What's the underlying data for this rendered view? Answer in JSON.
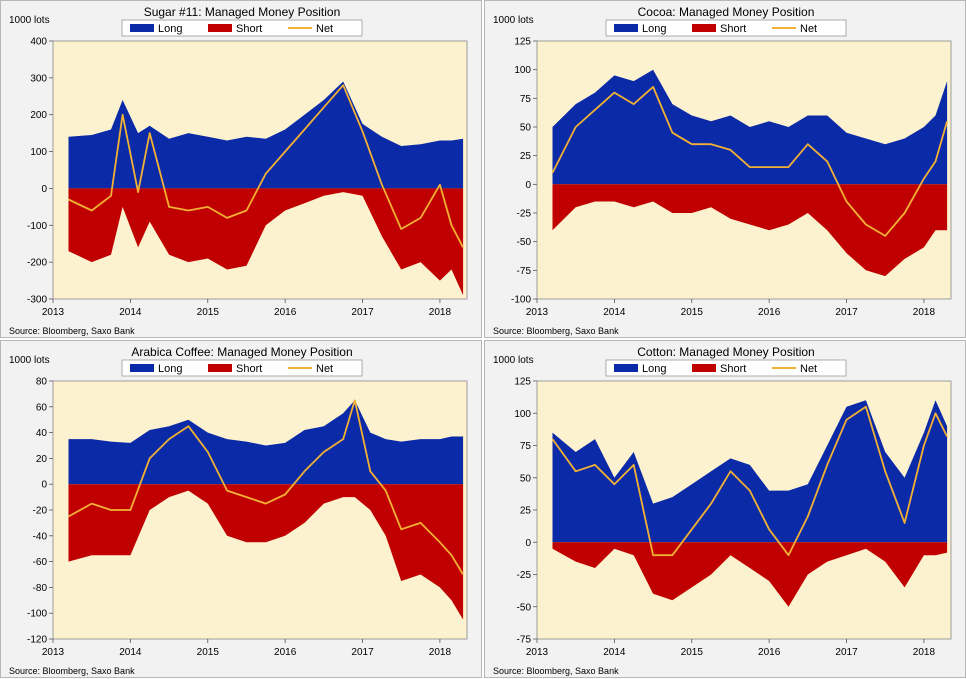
{
  "colors": {
    "long": "#0a2aa8",
    "short": "#c00000",
    "net": "#f2b134",
    "plot_bg": "#fdf2cf",
    "panel_bg": "#f2f2f2"
  },
  "legend": {
    "long": "Long",
    "short": "Short",
    "net": "Net"
  },
  "chart_data": [
    {
      "type": "area",
      "title": "Sugar #11: Managed Money Position",
      "unit": "1000 lots",
      "source": "Source: Bloomberg, Saxo Bank",
      "xlim": [
        2013,
        2018.35
      ],
      "ylim": [
        -300,
        400
      ],
      "yticks": [
        400,
        300,
        200,
        100,
        0,
        -100,
        -200,
        -300
      ],
      "xticks": [
        2013,
        2014,
        2015,
        2016,
        2017,
        2018
      ],
      "x": [
        2013.2,
        2013.5,
        2013.75,
        2013.9,
        2014.1,
        2014.25,
        2014.5,
        2014.75,
        2015.0,
        2015.25,
        2015.5,
        2015.75,
        2016.0,
        2016.25,
        2016.5,
        2016.75,
        2017.0,
        2017.25,
        2017.5,
        2017.75,
        2018.0,
        2018.15,
        2018.3
      ],
      "series": [
        {
          "name": "Long",
          "values": [
            140,
            145,
            160,
            240,
            150,
            170,
            135,
            150,
            140,
            130,
            140,
            135,
            160,
            200,
            240,
            290,
            175,
            140,
            115,
            120,
            130,
            130,
            135
          ]
        },
        {
          "name": "Short",
          "values": [
            -170,
            -200,
            -180,
            -50,
            -160,
            -90,
            -180,
            -200,
            -190,
            -220,
            -210,
            -100,
            -60,
            -40,
            -20,
            -10,
            -20,
            -130,
            -220,
            -200,
            -250,
            -220,
            -290
          ]
        },
        {
          "name": "Net",
          "values": [
            -30,
            -60,
            -20,
            200,
            -10,
            150,
            -50,
            -60,
            -50,
            -80,
            -60,
            40,
            100,
            160,
            220,
            280,
            155,
            10,
            -110,
            -80,
            10,
            -100,
            -160
          ]
        }
      ]
    },
    {
      "type": "area",
      "title": "Cocoa: Managed Money Position",
      "unit": "1000 lots",
      "source": "Source: Bloomberg, Saxo Bank",
      "xlim": [
        2013,
        2018.35
      ],
      "ylim": [
        -100,
        125
      ],
      "yticks": [
        125,
        100,
        75,
        50,
        25,
        0,
        -25,
        -50,
        -75,
        -100
      ],
      "xticks": [
        2013,
        2014,
        2015,
        2016,
        2017,
        2018
      ],
      "x": [
        2013.2,
        2013.5,
        2013.75,
        2014.0,
        2014.25,
        2014.5,
        2014.75,
        2015.0,
        2015.25,
        2015.5,
        2015.75,
        2016.0,
        2016.25,
        2016.5,
        2016.75,
        2017.0,
        2017.25,
        2017.5,
        2017.75,
        2018.0,
        2018.15,
        2018.3
      ],
      "series": [
        {
          "name": "Long",
          "values": [
            50,
            70,
            80,
            95,
            90,
            100,
            70,
            60,
            55,
            60,
            50,
            55,
            50,
            60,
            60,
            45,
            40,
            35,
            40,
            50,
            60,
            90
          ]
        },
        {
          "name": "Short",
          "values": [
            -40,
            -20,
            -15,
            -15,
            -20,
            -15,
            -25,
            -25,
            -20,
            -30,
            -35,
            -40,
            -35,
            -25,
            -40,
            -60,
            -75,
            -80,
            -65,
            -55,
            -40,
            -40
          ]
        },
        {
          "name": "Net",
          "values": [
            10,
            50,
            65,
            80,
            70,
            85,
            45,
            35,
            35,
            30,
            15,
            15,
            15,
            35,
            20,
            -15,
            -35,
            -45,
            -25,
            5,
            20,
            55
          ]
        }
      ]
    },
    {
      "type": "area",
      "title": "Arabica Coffee: Managed Money Position",
      "unit": "1000 lots",
      "source": "Source: Bloomberg, Saxo Bank",
      "xlim": [
        2013,
        2018.35
      ],
      "ylim": [
        -120,
        80
      ],
      "yticks": [
        80,
        60,
        40,
        20,
        0,
        -20,
        -40,
        -60,
        -80,
        -100,
        -120
      ],
      "xticks": [
        2013,
        2014,
        2015,
        2016,
        2017,
        2018
      ],
      "x": [
        2013.2,
        2013.5,
        2013.75,
        2014.0,
        2014.25,
        2014.5,
        2014.75,
        2015.0,
        2015.25,
        2015.5,
        2015.75,
        2016.0,
        2016.25,
        2016.5,
        2016.75,
        2016.9,
        2017.1,
        2017.3,
        2017.5,
        2017.75,
        2018.0,
        2018.15,
        2018.3
      ],
      "series": [
        {
          "name": "Long",
          "values": [
            35,
            35,
            33,
            32,
            42,
            45,
            50,
            40,
            35,
            33,
            30,
            32,
            42,
            45,
            55,
            65,
            40,
            35,
            33,
            35,
            35,
            37,
            37
          ]
        },
        {
          "name": "Short",
          "values": [
            -60,
            -55,
            -55,
            -55,
            -20,
            -10,
            -5,
            -15,
            -40,
            -45,
            -45,
            -40,
            -30,
            -15,
            -10,
            -10,
            -20,
            -40,
            -75,
            -70,
            -80,
            -90,
            -105
          ]
        },
        {
          "name": "Net",
          "values": [
            -25,
            -15,
            -20,
            -20,
            20,
            35,
            45,
            25,
            -5,
            -10,
            -15,
            -8,
            10,
            25,
            35,
            65,
            10,
            -5,
            -35,
            -30,
            -45,
            -55,
            -70
          ]
        }
      ]
    },
    {
      "type": "area",
      "title": "Cotton: Managed Money Position",
      "unit": "1000 lots",
      "source": "Source: Bloomberg, Saxo Bank",
      "xlim": [
        2013,
        2018.35
      ],
      "ylim": [
        -75,
        125
      ],
      "yticks": [
        125,
        100,
        75,
        50,
        25,
        0,
        -25,
        -50,
        -75
      ],
      "xticks": [
        2013,
        2014,
        2015,
        2016,
        2017,
        2018
      ],
      "x": [
        2013.2,
        2013.5,
        2013.75,
        2014.0,
        2014.25,
        2014.5,
        2014.75,
        2015.0,
        2015.25,
        2015.5,
        2015.75,
        2016.0,
        2016.25,
        2016.5,
        2016.75,
        2017.0,
        2017.25,
        2017.5,
        2017.75,
        2018.0,
        2018.15,
        2018.3
      ],
      "series": [
        {
          "name": "Long",
          "values": [
            85,
            70,
            80,
            50,
            70,
            30,
            35,
            45,
            55,
            65,
            60,
            40,
            40,
            45,
            75,
            105,
            110,
            70,
            50,
            85,
            110,
            90
          ]
        },
        {
          "name": "Short",
          "values": [
            -5,
            -15,
            -20,
            -5,
            -10,
            -40,
            -45,
            -35,
            -25,
            -10,
            -20,
            -30,
            -50,
            -25,
            -15,
            -10,
            -5,
            -15,
            -35,
            -10,
            -10,
            -8
          ]
        },
        {
          "name": "Net",
          "values": [
            80,
            55,
            60,
            45,
            60,
            -10,
            -10,
            10,
            30,
            55,
            40,
            10,
            -10,
            20,
            60,
            95,
            105,
            55,
            15,
            75,
            100,
            82
          ]
        }
      ]
    }
  ]
}
